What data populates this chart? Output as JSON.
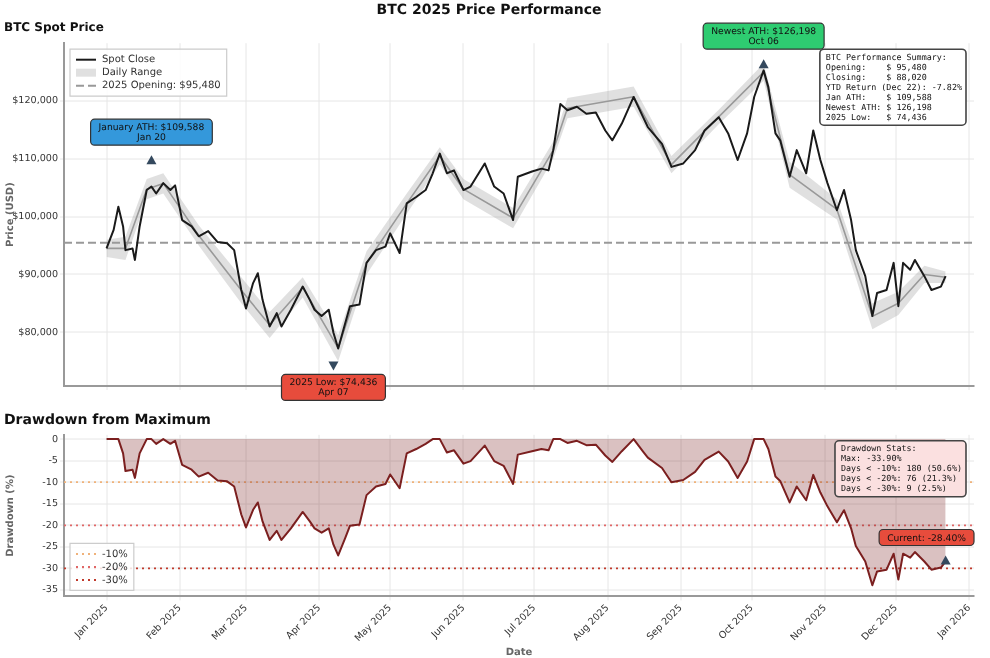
{
  "chart_data": [
    {
      "type": "line",
      "title": "BTC 2025 Price Performance",
      "subtitle": "BTC Spot Price",
      "ylabel": "Price (USD)",
      "x": [
        "2025-01-01",
        "2025-01-04",
        "2025-01-06",
        "2025-01-08",
        "2025-01-09",
        "2025-01-12",
        "2025-01-13",
        "2025-01-15",
        "2025-01-18",
        "2025-01-20",
        "2025-01-22",
        "2025-01-25",
        "2025-01-28",
        "2025-01-30",
        "2025-02-02",
        "2025-02-06",
        "2025-02-09",
        "2025-02-13",
        "2025-02-17",
        "2025-02-21",
        "2025-02-24",
        "2025-02-27",
        "2025-03-01",
        "2025-03-04",
        "2025-03-06",
        "2025-03-08",
        "2025-03-11",
        "2025-03-14",
        "2025-03-16",
        "2025-03-20",
        "2025-03-25",
        "2025-03-28",
        "2025-03-30",
        "2025-04-02",
        "2025-04-05",
        "2025-04-07",
        "2025-04-09",
        "2025-04-12",
        "2025-04-14",
        "2025-04-18",
        "2025-04-21",
        "2025-04-25",
        "2025-04-29",
        "2025-05-01",
        "2025-05-05",
        "2025-05-08",
        "2025-05-12",
        "2025-05-16",
        "2025-05-19",
        "2025-05-22",
        "2025-05-25",
        "2025-05-28",
        "2025-06-01",
        "2025-06-04",
        "2025-06-10",
        "2025-06-14",
        "2025-06-18",
        "2025-06-22",
        "2025-06-24",
        "2025-06-30",
        "2025-07-04",
        "2025-07-07",
        "2025-07-09",
        "2025-07-12",
        "2025-07-15",
        "2025-07-19",
        "2025-07-23",
        "2025-07-27",
        "2025-07-31",
        "2025-08-03",
        "2025-08-07",
        "2025-08-12",
        "2025-08-16",
        "2025-08-18",
        "2025-08-24",
        "2025-08-28",
        "2025-09-02",
        "2025-09-07",
        "2025-09-11",
        "2025-09-17",
        "2025-09-21",
        "2025-09-25",
        "2025-09-29",
        "2025-10-02",
        "2025-10-06",
        "2025-10-08",
        "2025-10-11",
        "2025-10-13",
        "2025-10-17",
        "2025-10-20",
        "2025-10-24",
        "2025-10-27",
        "2025-10-30",
        "2025-11-02",
        "2025-11-06",
        "2025-11-09",
        "2025-11-12",
        "2025-11-14",
        "2025-11-18",
        "2025-11-21",
        "2025-11-23",
        "2025-11-27",
        "2025-11-30",
        "2025-12-02",
        "2025-12-04",
        "2025-12-07",
        "2025-12-09",
        "2025-12-13",
        "2025-12-16",
        "2025-12-20",
        "2025-12-22"
      ],
      "series": [
        {
          "name": "Spot Close",
          "color": "#1a1a1a",
          "values": [
            94500,
            97700,
            101700,
            98300,
            94200,
            94500,
            92500,
            98300,
            104600,
            105200,
            104000,
            105800,
            104600,
            105400,
            99400,
            98300,
            96600,
            97500,
            95600,
            95400,
            94200,
            87300,
            84100,
            88500,
            90200,
            85600,
            81000,
            83300,
            81000,
            83900,
            87900,
            85600,
            83900,
            82800,
            83900,
            79900,
            77200,
            81600,
            84500,
            84800,
            92000,
            94200,
            94800,
            97100,
            93700,
            102300,
            103400,
            104600,
            107500,
            110900,
            107500,
            108000,
            104600,
            105200,
            109200,
            105200,
            104000,
            99400,
            106900,
            107800,
            108300,
            108000,
            111500,
            119500,
            118400,
            119000,
            117800,
            118000,
            114900,
            113200,
            116100,
            120700,
            117200,
            115500,
            112600,
            108600,
            109200,
            111500,
            114900,
            117200,
            114400,
            109800,
            114400,
            120700,
            125300,
            122400,
            114400,
            113200,
            106900,
            111500,
            107500,
            114900,
            109800,
            105800,
            101100,
            104600,
            99400,
            94200,
            89700,
            82800,
            86800,
            87300,
            92000,
            84500,
            92000,
            90800,
            92500,
            89700,
            87300,
            87900,
            89700
          ]
        },
        {
          "name": "Daily Range",
          "type": "line",
          "color": "#999999",
          "values": [
            94500,
            94500,
            104750,
            105750,
            96750,
            87250,
            81250,
            87750,
            77250,
            92000,
            102250,
            110500,
            104750,
            99750,
            111500,
            118750,
            120750,
            109000,
            117250,
            125000,
            107250,
            101250,
            82750,
            85000,
            90000,
            89500
          ],
          "x": [
            "2025-01-01",
            "2025-01-09",
            "2025-01-18",
            "2025-01-25",
            "2025-02-09",
            "2025-02-27",
            "2025-03-11",
            "2025-03-25",
            "2025-04-09",
            "2025-04-21",
            "2025-05-08",
            "2025-05-22",
            "2025-06-01",
            "2025-06-22",
            "2025-07-09",
            "2025-07-15",
            "2025-08-12",
            "2025-08-28",
            "2025-09-17",
            "2025-10-06",
            "2025-10-17",
            "2025-11-06",
            "2025-11-21",
            "2025-12-02",
            "2025-12-13",
            "2025-12-22"
          ],
          "lower": [
            93000,
            92500,
            103000,
            104000,
            95000,
            85000,
            79000,
            86000,
            75000,
            90000,
            100500,
            109000,
            103000,
            98000,
            110000,
            117000,
            119000,
            107500,
            116000,
            123500,
            105000,
            99500,
            80500,
            83000,
            88500,
            88500
          ],
          "upper": [
            96000,
            96500,
            106500,
            107500,
            98500,
            89500,
            83500,
            89500,
            79500,
            94000,
            104000,
            112000,
            106500,
            101500,
            113000,
            120500,
            122500,
            110500,
            118500,
            126500,
            109500,
            103000,
            85000,
            87000,
            91500,
            90500
          ]
        }
      ],
      "ref_lines": [
        {
          "axis": "y",
          "value": 95480,
          "label": "2025 Opening: $95,480",
          "color": "#999999",
          "line_style": "dashed"
        }
      ],
      "xlim": [
        "2024-12-14",
        "2026-01-03"
      ],
      "xticks": [
        {
          "value": "2025-01-01",
          "label": null
        },
        {
          "value": "2025-02-01",
          "label": null
        },
        {
          "value": "2025-03-01",
          "label": null
        },
        {
          "value": "2025-04-01",
          "label": null
        },
        {
          "value": "2025-05-01",
          "label": null
        },
        {
          "value": "2025-06-01",
          "label": null
        },
        {
          "value": "2025-07-01",
          "label": null
        },
        {
          "value": "2025-08-01",
          "label": null
        },
        {
          "value": "2025-09-01",
          "label": null
        },
        {
          "value": "2025-10-01",
          "label": null
        },
        {
          "value": "2025-11-01",
          "label": null
        },
        {
          "value": "2025-12-01",
          "label": null
        },
        {
          "value": "2026-01-01",
          "label": null
        }
      ],
      "ylim": [
        70700,
        130000
      ],
      "yticks": [
        {
          "value": 80000,
          "label": "$80,000"
        },
        {
          "value": 90000,
          "label": "$90,000"
        },
        {
          "value": 100000,
          "label": "$100,000"
        },
        {
          "value": 110000,
          "label": "$110,000"
        },
        {
          "value": 120000,
          "label": "$120,000"
        }
      ],
      "grid": true,
      "legend": "top left",
      "tick_labels": "y",
      "marker": "none",
      "annotations": [
        {
          "text": "January ATH: $109,588\nJan 20",
          "x": "2025-01-20",
          "y": 109588
        },
        {
          "text": "2025 Low: $74,436\nApr 07",
          "x": "2025-04-07",
          "y": 74436
        },
        {
          "text": "Newest ATH: $126,198\nOct 06",
          "x": "2025-10-06",
          "y": 126198
        },
        "BTC Performance Summary:\nOpening:    $ 95,480\nClosing:    $ 88,020\nYTD Return (Dec 22): -7.82%\nJan ATH:    $ 109,588\nNewest ATH: $ 126,198\n2025 Low:   $ 74,436"
      ]
    },
    {
      "type": "area",
      "title": "Drawdown from Maximum",
      "xlabel": "Date",
      "ylabel": "Drawdown (%)",
      "x": [
        "2025-01-01",
        "2025-01-04",
        "2025-01-06",
        "2025-01-08",
        "2025-01-09",
        "2025-01-12",
        "2025-01-13",
        "2025-01-15",
        "2025-01-18",
        "2025-01-20",
        "2025-01-22",
        "2025-01-25",
        "2025-01-28",
        "2025-01-30",
        "2025-02-02",
        "2025-02-06",
        "2025-02-09",
        "2025-02-13",
        "2025-02-17",
        "2025-02-21",
        "2025-02-24",
        "2025-02-27",
        "2025-03-01",
        "2025-03-04",
        "2025-03-06",
        "2025-03-08",
        "2025-03-11",
        "2025-03-14",
        "2025-03-16",
        "2025-03-20",
        "2025-03-25",
        "2025-03-28",
        "2025-03-30",
        "2025-04-02",
        "2025-04-05",
        "2025-04-07",
        "2025-04-09",
        "2025-04-12",
        "2025-04-14",
        "2025-04-18",
        "2025-04-21",
        "2025-04-25",
        "2025-04-29",
        "2025-05-01",
        "2025-05-05",
        "2025-05-08",
        "2025-05-12",
        "2025-05-16",
        "2025-05-19",
        "2025-05-22",
        "2025-05-25",
        "2025-05-28",
        "2025-06-01",
        "2025-06-04",
        "2025-06-10",
        "2025-06-14",
        "2025-06-18",
        "2025-06-22",
        "2025-06-24",
        "2025-06-30",
        "2025-07-04",
        "2025-07-07",
        "2025-07-09",
        "2025-07-12",
        "2025-07-15",
        "2025-07-19",
        "2025-07-23",
        "2025-07-27",
        "2025-07-31",
        "2025-08-03",
        "2025-08-07",
        "2025-08-12",
        "2025-08-16",
        "2025-08-18",
        "2025-08-24",
        "2025-08-28",
        "2025-09-02",
        "2025-09-07",
        "2025-09-11",
        "2025-09-17",
        "2025-09-21",
        "2025-09-25",
        "2025-09-29",
        "2025-10-02",
        "2025-10-06",
        "2025-10-08",
        "2025-10-11",
        "2025-10-13",
        "2025-10-17",
        "2025-10-20",
        "2025-10-24",
        "2025-10-27",
        "2025-10-30",
        "2025-11-02",
        "2025-11-06",
        "2025-11-09",
        "2025-11-12",
        "2025-11-14",
        "2025-11-18",
        "2025-11-21",
        "2025-11-23",
        "2025-11-27",
        "2025-11-30",
        "2025-12-02",
        "2025-12-04",
        "2025-12-07",
        "2025-12-09",
        "2025-12-13",
        "2025-12-16",
        "2025-12-20",
        "2025-12-22"
      ],
      "series": [
        {
          "color": "#7b1f1f",
          "values": [
            0,
            0,
            0,
            -3.3,
            -7.4,
            -7.1,
            -9.0,
            -3.3,
            0,
            0,
            -1.1,
            0,
            -1.1,
            -0.4,
            -6.0,
            -7.1,
            -8.7,
            -7.8,
            -9.6,
            -9.8,
            -11.0,
            -17.5,
            -20.5,
            -16.4,
            -14.7,
            -19.1,
            -23.4,
            -21.3,
            -23.4,
            -20.7,
            -16.9,
            -19.1,
            -20.7,
            -21.7,
            -20.7,
            -24.5,
            -27.0,
            -22.9,
            -20.1,
            -19.8,
            -13.0,
            -11.0,
            -10.4,
            -8.2,
            -11.4,
            -3.3,
            -2.3,
            -1.1,
            0,
            0,
            -3.1,
            -2.6,
            -5.7,
            -5.1,
            -1.5,
            -5.1,
            -6.2,
            -10.4,
            -3.6,
            -2.8,
            -2.3,
            -2.6,
            0,
            0,
            -0.9,
            -0.4,
            -1.4,
            -1.3,
            -3.8,
            -5.3,
            -2.8,
            0,
            -2.9,
            -4.3,
            -6.7,
            -10.0,
            -9.5,
            -7.6,
            -4.8,
            -2.9,
            -5.2,
            -9.0,
            -5.2,
            0,
            0,
            -2.3,
            -8.7,
            -9.7,
            -14.7,
            -11.0,
            -14.2,
            -8.3,
            -12.4,
            -15.6,
            -19.3,
            -16.5,
            -20.7,
            -24.8,
            -28.4,
            -33.9,
            -30.7,
            -30.3,
            -26.6,
            -32.6,
            -26.6,
            -27.5,
            -26.2,
            -28.4,
            -30.3,
            -29.8,
            -28.4
          ]
        }
      ],
      "ref_lines": [
        {
          "axis": "y",
          "value": -10,
          "label": "-10%",
          "color": "#f0b27a",
          "line_style": "dotted"
        },
        {
          "axis": "y",
          "value": -20,
          "label": "-20%",
          "color": "#e06666",
          "line_style": "dotted"
        },
        {
          "axis": "y",
          "value": -30,
          "label": "-30%",
          "color": "#c0392b",
          "line_style": "dotted"
        }
      ],
      "xlim": [
        "2024-12-14",
        "2026-01-03"
      ],
      "xticks": [
        {
          "value": "2025-01-01",
          "label": "Jan 2025"
        },
        {
          "value": "2025-02-01",
          "label": "Feb 2025"
        },
        {
          "value": "2025-03-01",
          "label": "Mar 2025"
        },
        {
          "value": "2025-04-01",
          "label": "Apr 2025"
        },
        {
          "value": "2025-05-01",
          "label": "May 2025"
        },
        {
          "value": "2025-06-01",
          "label": "Jun 2025"
        },
        {
          "value": "2025-07-01",
          "label": "Jul 2025"
        },
        {
          "value": "2025-08-01",
          "label": "Aug 2025"
        },
        {
          "value": "2025-09-01",
          "label": "Sep 2025"
        },
        {
          "value": "2025-10-01",
          "label": "Oct 2025"
        },
        {
          "value": "2025-11-01",
          "label": "Nov 2025"
        },
        {
          "value": "2025-12-01",
          "label": "Dec 2025"
        },
        {
          "value": "2026-01-01",
          "label": "Jan 2026"
        }
      ],
      "ylim": [
        -36.5,
        1
      ],
      "yticks": [
        0,
        -5,
        -10,
        -15,
        -20,
        -25,
        -30,
        -35
      ],
      "grid": true,
      "legend": "bottom left",
      "marker": "none",
      "annotations": [
        "Drawdown Stats:\nMax: -33.90%\nDays < -10%: 180 (50.6%)\nDays < -20%: 76 (21.3%)\nDays < -30%: 9 (2.5%)",
        {
          "text": "Current: -28.40%",
          "x": "2025-12-22",
          "y": -28.4
        }
      ]
    }
  ]
}
